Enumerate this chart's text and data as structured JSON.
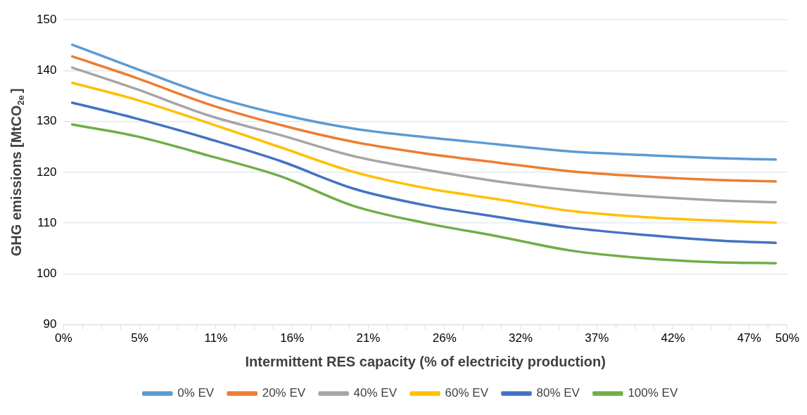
{
  "chart_data": {
    "type": "line",
    "xlabel": "Intermittent RES capacity (% of electricity production)",
    "ylabel": "GHG emissions [MtCO$_{2e}$]",
    "x": [
      0.6,
      5,
      10,
      15,
      20,
      25,
      30,
      35,
      40,
      45,
      49.2
    ],
    "series": [
      {
        "name": "0% EV",
        "color": "#5b9bd5",
        "values": [
          145.1,
          140.4,
          135.2,
          131.4,
          128.6,
          126.9,
          125.5,
          124.1,
          123.4,
          122.8,
          122.5
        ]
      },
      {
        "name": "20% EV",
        "color": "#ed7d31",
        "values": [
          142.8,
          138.6,
          133.4,
          129.3,
          126.0,
          123.7,
          121.9,
          120.2,
          119.2,
          118.5,
          118.2
        ]
      },
      {
        "name": "40% EV",
        "color": "#a5a5a5",
        "values": [
          140.6,
          136.4,
          131.2,
          127.3,
          123.2,
          120.5,
          118.2,
          116.5,
          115.3,
          114.5,
          114.1
        ]
      },
      {
        "name": "60% EV",
        "color": "#ffc000",
        "values": [
          137.6,
          134.3,
          129.7,
          124.9,
          120.1,
          116.9,
          114.7,
          112.4,
          111.2,
          110.5,
          110.1
        ]
      },
      {
        "name": "80% EV",
        "color": "#4472c4",
        "values": [
          133.7,
          130.6,
          126.6,
          122.2,
          116.8,
          113.5,
          111.2,
          109.1,
          107.7,
          106.6,
          106.1
        ]
      },
      {
        "name": "100% EV",
        "color": "#70ad47",
        "values": [
          129.4,
          127.1,
          123.3,
          119.2,
          113.4,
          110.0,
          107.4,
          104.6,
          103.1,
          102.3,
          102.1
        ]
      }
    ],
    "xlim": [
      0,
      50
    ],
    "xticks": [
      {
        "value": 0,
        "label": "0%"
      },
      {
        "value": 1.316,
        "label": null
      },
      {
        "value": 2.632,
        "label": null
      },
      {
        "value": 3.947,
        "label": null
      },
      {
        "value": 5.263,
        "label": "5%"
      },
      {
        "value": 6.579,
        "label": null
      },
      {
        "value": 7.895,
        "label": null
      },
      {
        "value": 9.211,
        "label": null
      },
      {
        "value": 10.526,
        "label": "11%"
      },
      {
        "value": 11.842,
        "label": null
      },
      {
        "value": 13.158,
        "label": null
      },
      {
        "value": 14.474,
        "label": null
      },
      {
        "value": 15.789,
        "label": "16%"
      },
      {
        "value": 17.105,
        "label": null
      },
      {
        "value": 18.421,
        "label": null
      },
      {
        "value": 19.737,
        "label": null
      },
      {
        "value": 21.053,
        "label": "21%"
      },
      {
        "value": 22.368,
        "label": null
      },
      {
        "value": 23.684,
        "label": null
      },
      {
        "value": 25,
        "label": null
      },
      {
        "value": 26.316,
        "label": "26%"
      },
      {
        "value": 27.632,
        "label": null
      },
      {
        "value": 28.947,
        "label": null
      },
      {
        "value": 30.263,
        "label": null
      },
      {
        "value": 31.579,
        "label": "32%"
      },
      {
        "value": 32.895,
        "label": null
      },
      {
        "value": 34.211,
        "label": null
      },
      {
        "value": 35.526,
        "label": null
      },
      {
        "value": 36.842,
        "label": "37%"
      },
      {
        "value": 38.158,
        "label": null
      },
      {
        "value": 39.474,
        "label": null
      },
      {
        "value": 40.789,
        "label": null
      },
      {
        "value": 42.105,
        "label": "42%"
      },
      {
        "value": 43.421,
        "label": null
      },
      {
        "value": 44.737,
        "label": null
      },
      {
        "value": 46.053,
        "label": null
      },
      {
        "value": 47.368,
        "label": "47%"
      },
      {
        "value": 48.684,
        "label": null
      },
      {
        "value": 50,
        "label": "50%"
      }
    ],
    "ylim": [
      90,
      150
    ],
    "yticks": [
      90,
      100,
      110,
      120,
      130,
      140,
      150
    ],
    "grid": "y",
    "legend": "bottom",
    "marker": "none",
    "line_style": "solid"
  }
}
